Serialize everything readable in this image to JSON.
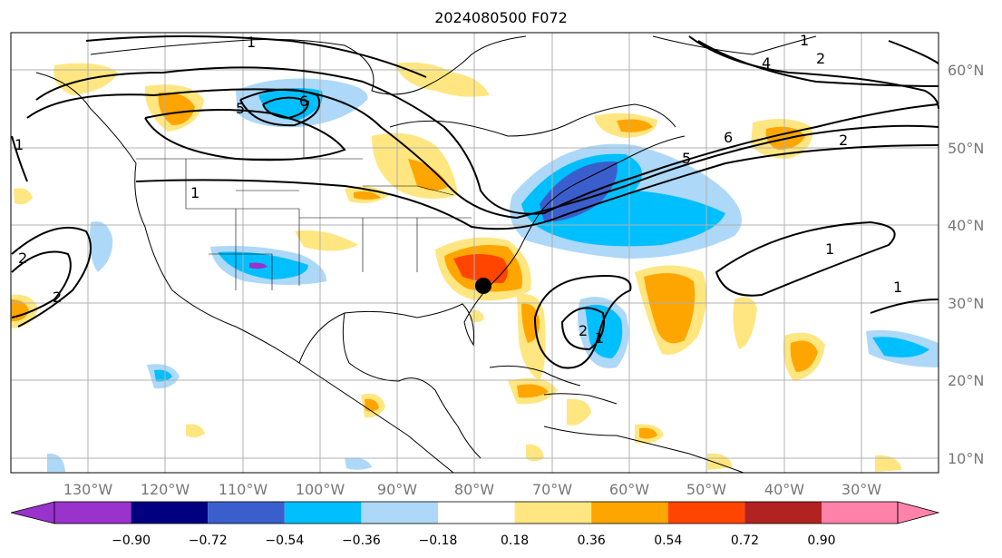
{
  "title": "2024080500 F072",
  "map": {
    "lon_ticks": [
      "130°W",
      "120°W",
      "110°W",
      "100°W",
      "90°W",
      "80°W",
      "70°W",
      "60°W",
      "50°W",
      "40°W",
      "30°W"
    ],
    "lat_ticks": [
      "60°N",
      "50°N",
      "40°N",
      "30°N",
      "20°N",
      "10°N"
    ],
    "contour_labels": [
      "1",
      "1",
      "5",
      "6",
      "1",
      "2",
      "2",
      "1",
      "1",
      "2",
      "1",
      "1",
      "4",
      "2",
      "2",
      "6",
      "5"
    ],
    "marker": "black dot near southeastern US coast"
  },
  "colorbar": {
    "ticks": [
      "−0.90",
      "−0.72",
      "−0.54",
      "−0.36",
      "−0.18",
      "0.18",
      "0.36",
      "0.54",
      "0.72",
      "0.90"
    ],
    "colors": [
      "#9933cc",
      "#000080",
      "#3a5fcd",
      "#00bfff",
      "#add8f8",
      "#ffffff",
      "#ffe680",
      "#ffa500",
      "#ff4500",
      "#b22222",
      "#ff82ab"
    ]
  }
}
